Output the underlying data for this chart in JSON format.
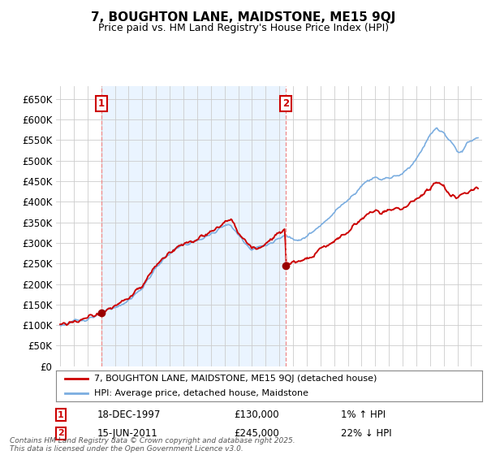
{
  "title": "7, BOUGHTON LANE, MAIDSTONE, ME15 9QJ",
  "subtitle": "Price paid vs. HM Land Registry's House Price Index (HPI)",
  "legend_line1": "7, BOUGHTON LANE, MAIDSTONE, ME15 9QJ (detached house)",
  "legend_line2": "HPI: Average price, detached house, Maidstone",
  "sale1_date": "18-DEC-1997",
  "sale1_price": "£130,000",
  "sale1_hpi": "1% ↑ HPI",
  "sale1_year": 1998.0,
  "sale1_value": 130000,
  "sale2_date": "15-JUN-2011",
  "sale2_price": "£245,000",
  "sale2_hpi": "22% ↓ HPI",
  "sale2_year": 2011.45,
  "sale2_value": 245000,
  "copyright": "Contains HM Land Registry data © Crown copyright and database right 2025.\nThis data is licensed under the Open Government Licence v3.0.",
  "hpi_color": "#7aade0",
  "price_color": "#cc0000",
  "marker_color": "#990000",
  "dashed_line_color": "#ee8888",
  "shading_color": "#ddeeff",
  "background_color": "#ffffff",
  "grid_color": "#cccccc",
  "ylim": [
    0,
    680000
  ],
  "yticks": [
    0,
    50000,
    100000,
    150000,
    200000,
    250000,
    300000,
    350000,
    400000,
    450000,
    500000,
    550000,
    600000,
    650000
  ],
  "xlim_start": 1994.7,
  "xlim_end": 2025.8
}
